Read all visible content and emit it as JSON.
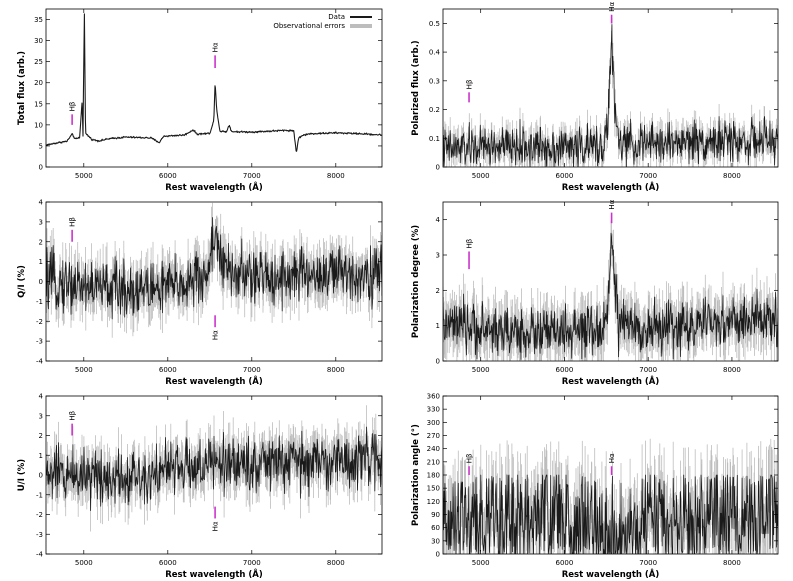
{
  "colors": {
    "data": "#1a1a1a",
    "errors": "#bdbdbd",
    "marker": "#cc33cc"
  },
  "legend": {
    "data_label": "Data",
    "errors_label": "Observational errors"
  },
  "chart_data": [
    {
      "type": "line",
      "id": "total-flux",
      "xlabel": "Rest wavelength (Å)",
      "ylabel": "Total flux (arb.)",
      "xlim": [
        4550,
        8550
      ],
      "ylim": [
        0,
        37.5
      ],
      "xticks": [
        5000,
        6000,
        7000,
        8000
      ],
      "yticks": [
        0,
        5,
        10,
        15,
        20,
        25,
        30,
        35
      ],
      "ytick_labels": [
        "0",
        "5",
        "10",
        "15",
        "20",
        "25",
        "30",
        "35"
      ],
      "legend": "top-right",
      "noise": 0.1,
      "err": 0,
      "series_points": [
        [
          4550,
          5.2
        ],
        [
          4700,
          5.8
        ],
        [
          4800,
          6.1
        ],
        [
          4860,
          7.8
        ],
        [
          4900,
          6.6
        ],
        [
          4950,
          7.0
        ],
        [
          4980,
          15.5
        ],
        [
          4990,
          7.5
        ],
        [
          5007,
          36.5
        ],
        [
          5020,
          8.0
        ],
        [
          5100,
          6.5
        ],
        [
          5180,
          6.2
        ],
        [
          5300,
          6.7
        ],
        [
          5500,
          7.1
        ],
        [
          5800,
          6.9
        ],
        [
          5900,
          5.8
        ],
        [
          5950,
          7.3
        ],
        [
          6200,
          7.6
        ],
        [
          6300,
          8.8
        ],
        [
          6350,
          7.8
        ],
        [
          6500,
          8.0
        ],
        [
          6548,
          11.0
        ],
        [
          6563,
          20.2
        ],
        [
          6583,
          13.5
        ],
        [
          6620,
          8.5
        ],
        [
          6700,
          8.4
        ],
        [
          6730,
          10.0
        ],
        [
          6760,
          8.4
        ],
        [
          7000,
          8.3
        ],
        [
          7200,
          8.5
        ],
        [
          7400,
          8.7
        ],
        [
          7500,
          8.6
        ],
        [
          7530,
          3.4
        ],
        [
          7560,
          7.0
        ],
        [
          7620,
          7.6
        ],
        [
          7700,
          7.9
        ],
        [
          8000,
          8.1
        ],
        [
          8300,
          7.9
        ],
        [
          8550,
          7.6
        ]
      ],
      "markers": [
        {
          "label": "Hβ",
          "x": 4861,
          "y_range": [
            10.0,
            12.5
          ],
          "label_pos": "above"
        },
        {
          "label": "Hα",
          "x": 6563,
          "y_range": [
            23.5,
            26.5
          ],
          "label_pos": "above"
        }
      ]
    },
    {
      "type": "line",
      "id": "polarized-flux",
      "xlabel": "Rest wavelength (Å)",
      "ylabel": "Polarized flux (arb.)",
      "xlim": [
        4550,
        8550
      ],
      "ylim": [
        0,
        0.55
      ],
      "xticks": [
        5000,
        6000,
        7000,
        8000
      ],
      "yticks": [
        0,
        0.1,
        0.2,
        0.3,
        0.4,
        0.5
      ],
      "ytick_labels": [
        "0",
        "0.1",
        "0.2",
        "0.3",
        "0.4",
        "0.5"
      ],
      "noise": 0.035,
      "err": 0.035,
      "series_points": [
        [
          4550,
          0.06
        ],
        [
          5000,
          0.07
        ],
        [
          5500,
          0.07
        ],
        [
          6000,
          0.07
        ],
        [
          6450,
          0.07
        ],
        [
          6520,
          0.15
        ],
        [
          6563,
          0.46
        ],
        [
          6600,
          0.2
        ],
        [
          6650,
          0.08
        ],
        [
          7000,
          0.08
        ],
        [
          7500,
          0.09
        ],
        [
          8000,
          0.09
        ],
        [
          8550,
          0.09
        ]
      ],
      "markers": [
        {
          "label": "Hβ",
          "x": 4861,
          "y_range": [
            0.225,
            0.26
          ],
          "label_pos": "above"
        },
        {
          "label": "Hα",
          "x": 6563,
          "y_range": [
            0.5,
            0.53
          ],
          "label_pos": "above"
        }
      ]
    },
    {
      "type": "line",
      "id": "q-over-i",
      "xlabel": "Rest wavelength (Å)",
      "ylabel": "Q/I (%)",
      "xlim": [
        4550,
        8550
      ],
      "ylim": [
        -4,
        4
      ],
      "xticks": [
        5000,
        6000,
        7000,
        8000
      ],
      "yticks": [
        -4,
        -3,
        -2,
        -1,
        0,
        1,
        2,
        3,
        4
      ],
      "ytick_labels": [
        "-4",
        "-3",
        "-2",
        "-1",
        "0",
        "1",
        "2",
        "3",
        "4"
      ],
      "noise": 0.7,
      "err": 0.8,
      "series_points": [
        [
          4550,
          0.0
        ],
        [
          5000,
          -0.2
        ],
        [
          5500,
          -0.4
        ],
        [
          6000,
          -0.3
        ],
        [
          6450,
          0.2
        ],
        [
          6520,
          1.5
        ],
        [
          6563,
          2.7
        ],
        [
          6600,
          1.8
        ],
        [
          6650,
          0.6
        ],
        [
          7000,
          0.2
        ],
        [
          7500,
          0.3
        ],
        [
          8000,
          0.4
        ],
        [
          8550,
          0.4
        ]
      ],
      "markers": [
        {
          "label": "Hβ",
          "x": 4861,
          "y_range": [
            2.0,
            2.6
          ],
          "label_pos": "above"
        },
        {
          "label": "Hα",
          "x": 6563,
          "y_range": [
            -1.7,
            -2.3
          ],
          "label_pos": "below"
        }
      ]
    },
    {
      "type": "line",
      "id": "polarization-degree",
      "xlabel": "Rest wavelength (Å)",
      "ylabel": "Polarization degree (%)",
      "xlim": [
        4550,
        8550
      ],
      "ylim": [
        0,
        4.5
      ],
      "xticks": [
        5000,
        6000,
        7000,
        8000
      ],
      "yticks": [
        0,
        1,
        2,
        3,
        4
      ],
      "ytick_labels": [
        "0",
        "1",
        "2",
        "3",
        "4"
      ],
      "noise": 0.35,
      "err": 0.5,
      "series_points": [
        [
          4550,
          1.0
        ],
        [
          5000,
          0.9
        ],
        [
          5500,
          0.8
        ],
        [
          6000,
          0.8
        ],
        [
          6450,
          0.8
        ],
        [
          6520,
          1.8
        ],
        [
          6563,
          3.4
        ],
        [
          6600,
          2.2
        ],
        [
          6650,
          1.0
        ],
        [
          7000,
          0.9
        ],
        [
          7500,
          1.0
        ],
        [
          8000,
          1.1
        ],
        [
          8550,
          1.2
        ]
      ],
      "markers": [
        {
          "label": "Hβ",
          "x": 4861,
          "y_range": [
            2.6,
            3.1
          ],
          "label_pos": "above"
        },
        {
          "label": "Hα",
          "x": 6563,
          "y_range": [
            3.9,
            4.2
          ],
          "label_pos": "above"
        }
      ]
    },
    {
      "type": "line",
      "id": "u-over-i",
      "xlabel": "Rest wavelength (Å)",
      "ylabel": "U/I (%)",
      "xlim": [
        4550,
        8550
      ],
      "ylim": [
        -4,
        4
      ],
      "xticks": [
        5000,
        6000,
        7000,
        8000
      ],
      "yticks": [
        -4,
        -3,
        -2,
        -1,
        0,
        1,
        2,
        3,
        4
      ],
      "ytick_labels": [
        "-4",
        "-3",
        "-2",
        "-1",
        "0",
        "1",
        "2",
        "3",
        "4"
      ],
      "noise": 0.7,
      "err": 0.8,
      "series_points": [
        [
          4550,
          0.0
        ],
        [
          5000,
          0.1
        ],
        [
          5500,
          -0.1
        ],
        [
          6000,
          0.3
        ],
        [
          6500,
          0.5
        ],
        [
          6563,
          0.6
        ],
        [
          7000,
          0.6
        ],
        [
          7500,
          0.6
        ],
        [
          8000,
          0.7
        ],
        [
          8550,
          0.8
        ]
      ],
      "markers": [
        {
          "label": "Hβ",
          "x": 4861,
          "y_range": [
            2.0,
            2.6
          ],
          "label_pos": "above"
        },
        {
          "label": "Hα",
          "x": 6563,
          "y_range": [
            -1.6,
            -2.2
          ],
          "label_pos": "below"
        }
      ]
    },
    {
      "type": "line",
      "id": "polarization-angle",
      "xlabel": "Rest wavelength (Å)",
      "ylabel": "Polarization angle (°)",
      "xlim": [
        4550,
        8550
      ],
      "ylim": [
        0,
        360
      ],
      "xticks": [
        5000,
        6000,
        7000,
        8000
      ],
      "yticks": [
        0,
        30,
        60,
        90,
        120,
        150,
        180,
        210,
        240,
        270,
        300,
        330,
        360
      ],
      "ytick_labels": [
        "0",
        "30",
        "60",
        "90",
        "120",
        "150",
        "180",
        "210",
        "240",
        "270",
        "300",
        "330",
        "360"
      ],
      "noise": 55,
      "err": 60,
      "clip": [
        0,
        180
      ],
      "series_points": [
        [
          4550,
          80
        ],
        [
          5000,
          75
        ],
        [
          5500,
          70
        ],
        [
          6000,
          70
        ],
        [
          6400,
          55
        ],
        [
          6500,
          30
        ],
        [
          6560,
          20
        ],
        [
          6620,
          40
        ],
        [
          7000,
          80
        ],
        [
          7500,
          85
        ],
        [
          8000,
          80
        ],
        [
          8550,
          75
        ]
      ],
      "markers": [
        {
          "label": "Hβ",
          "x": 4861,
          "y_range": [
            180,
            200
          ],
          "label_pos": "above"
        },
        {
          "label": "Hα",
          "x": 6563,
          "y_range": [
            180,
            200
          ],
          "label_pos": "above"
        }
      ]
    }
  ]
}
